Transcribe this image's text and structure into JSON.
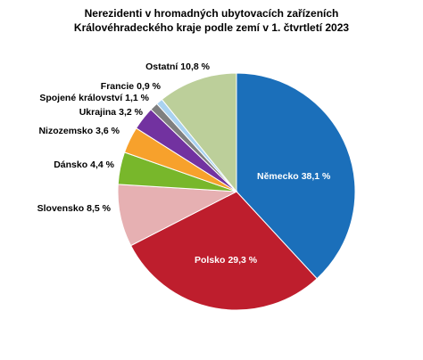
{
  "chart_data": {
    "type": "pie",
    "title": [
      "Nerezidenti v hromadných ubytovacích  zařízeních",
      "Královéhradeckého kraje podle zemí v 1. čtvrtletí 2023"
    ],
    "categories": [
      "Německo",
      "Polsko",
      "Slovensko",
      "Dánsko",
      "Nizozemsko",
      "Ukrajina",
      "Spojené království",
      "Francie",
      "Ostatní"
    ],
    "values": [
      38.1,
      29.3,
      8.5,
      4.4,
      3.6,
      3.2,
      1.1,
      0.9,
      10.8
    ],
    "value_labels": [
      "38,1 %",
      "29,3 %",
      "8,5 %",
      "4,4 %",
      "3,6 %",
      "3,2 %",
      "1,1 %",
      "0,9 %",
      "10,8 %"
    ],
    "colors": [
      "#1b6fba",
      "#be1e2d",
      "#e6b0b2",
      "#78b72b",
      "#f7a12c",
      "#7232a0",
      "#7f7f7f",
      "#a9d2f0",
      "#bccf9a"
    ]
  }
}
